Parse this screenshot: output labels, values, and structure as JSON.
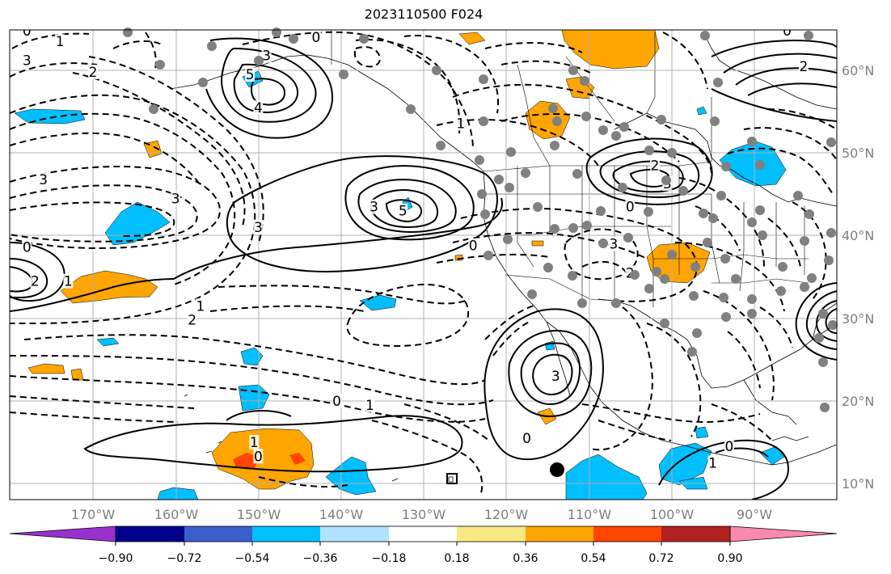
{
  "title": "2023110500 F024",
  "map": {
    "lon_labels": [
      "170°W",
      "160°W",
      "150°W",
      "140°W",
      "130°W",
      "120°W",
      "110°W",
      "100°W",
      "90°W"
    ],
    "lat_labels": [
      "60°N",
      "50°N",
      "40°N",
      "30°N",
      "20°N",
      "10°N"
    ]
  },
  "colorbar": {
    "colors": [
      "#9932cc",
      "#00008b",
      "#3a5fcd",
      "#00bfff",
      "#b0e2ff",
      "#ffffff",
      "#fce883",
      "#ffa500",
      "#ff4500",
      "#b22222",
      "#f88ab0"
    ],
    "ticks": [
      "−0.90",
      "−0.72",
      "−0.54",
      "−0.36",
      "−0.18",
      "0.18",
      "0.36",
      "0.54",
      "0.72",
      "0.90"
    ]
  },
  "contour_labels": [
    {
      "text": "0",
      "lon": -178,
      "lat": 64.8
    },
    {
      "text": "1",
      "lon": -174,
      "lat": 63.5
    },
    {
      "text": "2",
      "lon": -170,
      "lat": 59.8
    },
    {
      "text": "3",
      "lon": -178,
      "lat": 61.2
    },
    {
      "text": "5",
      "lon": -151,
      "lat": 59.5
    },
    {
      "text": "4",
      "lon": -150,
      "lat": 55.5
    },
    {
      "text": "3",
      "lon": -149,
      "lat": 61.8
    },
    {
      "text": "0",
      "lon": -143,
      "lat": 64.0
    },
    {
      "text": "1",
      "lon": -125.5,
      "lat": 53.6
    },
    {
      "text": "3",
      "lon": -136,
      "lat": 43.5
    },
    {
      "text": "5",
      "lon": -132.5,
      "lat": 43.0
    },
    {
      "text": "3",
      "lon": -150,
      "lat": 41.0
    },
    {
      "text": "0",
      "lon": -124,
      "lat": 38.8
    },
    {
      "text": "1",
      "lon": -157,
      "lat": 31.5
    },
    {
      "text": "2",
      "lon": -158,
      "lat": 29.8
    },
    {
      "text": "3",
      "lon": -176,
      "lat": 46.8
    },
    {
      "text": "3",
      "lon": -160,
      "lat": 44.5
    },
    {
      "text": "0",
      "lon": -178,
      "lat": 38.6
    },
    {
      "text": "2",
      "lon": -177,
      "lat": 34.5
    },
    {
      "text": "1",
      "lon": -173,
      "lat": 34.5
    },
    {
      "text": "2",
      "lon": -102,
      "lat": 48.5
    },
    {
      "text": "3",
      "lon": -100.5,
      "lat": 46.3
    },
    {
      "text": "0",
      "lon": -105,
      "lat": 43.5
    },
    {
      "text": "3",
      "lon": -107,
      "lat": 39.0
    },
    {
      "text": "2",
      "lon": -105,
      "lat": 35.5
    },
    {
      "text": "3",
      "lon": -114,
      "lat": 23.0
    },
    {
      "text": "0",
      "lon": -117.5,
      "lat": 15.5
    },
    {
      "text": "0",
      "lon": -140.5,
      "lat": 20.0
    },
    {
      "text": "1",
      "lon": -136.5,
      "lat": 19.5
    },
    {
      "text": "1",
      "lon": -150.5,
      "lat": 15.0
    },
    {
      "text": "0",
      "lon": -150,
      "lat": 13.3
    },
    {
      "text": "1",
      "lon": -95,
      "lat": 12.5
    },
    {
      "text": "0",
      "lon": -93,
      "lat": 14.5
    },
    {
      "text": "2",
      "lon": -84,
      "lat": 60.5
    },
    {
      "text": "0",
      "lon": -86,
      "lat": 64.8
    }
  ]
}
